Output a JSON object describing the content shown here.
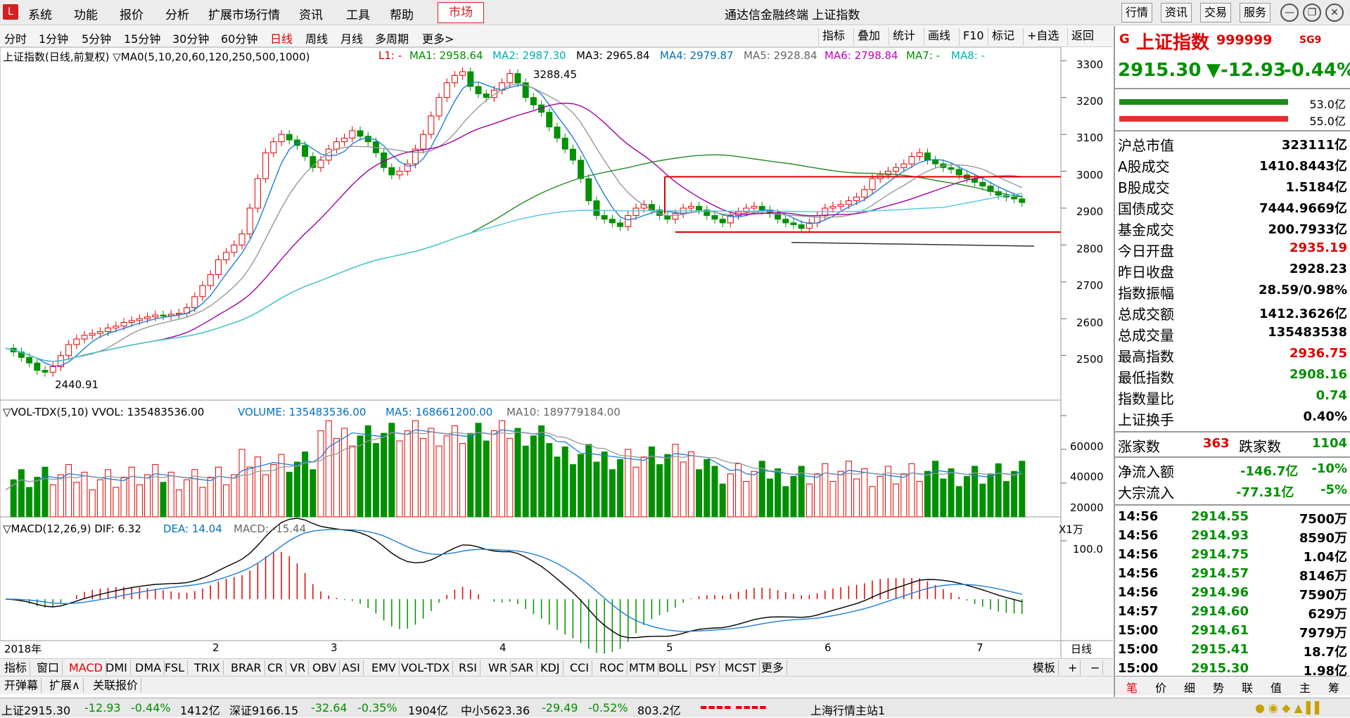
{
  "menu": {
    "logo": "L",
    "items": [
      "系统",
      "功能",
      "报价",
      "分析",
      "扩展市场行情",
      "资讯",
      "工具",
      "帮助"
    ],
    "market_tab": "市场",
    "window_title": "通达信金融终端 上证指数",
    "right_buttons": [
      "行情",
      "资讯",
      "交易",
      "服务"
    ]
  },
  "periods": [
    "分时",
    "1分钟",
    "5分钟",
    "15分钟",
    "30分钟",
    "60分钟",
    "日线",
    "周线",
    "月线",
    "多周期",
    "更多>"
  ],
  "active_period": "日线",
  "toolbar": [
    "指标",
    "叠加",
    "统计",
    "画线",
    "F10",
    "标记",
    "+自选",
    "返回"
  ],
  "price_legend": {
    "title": "上证指数(日线,前复权) ▽MA0(5,10,20,60,120,250,500,1000)",
    "l1": "L1: -",
    "ma1": "MA1: 2958.64",
    "ma2": "MA2: 2987.30",
    "ma3": "MA3: 2965.84",
    "ma4": "MA4: 2979.87",
    "ma5": "MA5: 2928.84",
    "ma6": "MA6: 2798.84",
    "ma7": "MA7: -",
    "ma8": "MA8: -"
  },
  "annotations": {
    "high": "3288.45",
    "low": "2440.91"
  },
  "price_axis": [
    "3300",
    "3200",
    "3100",
    "3000",
    "2900",
    "2800",
    "2700",
    "2600",
    "2500"
  ],
  "vol_legend": {
    "title": "▽VOL-TDX(5,10) VVOL: 135483536.00",
    "volume": "VOLUME: 135483536.00",
    "ma5": "MA5: 168661200.00",
    "ma10": "MA10: 189779184.00"
  },
  "vol_axis": [
    "60000",
    "40000",
    "20000"
  ],
  "vol_unit": "X1万",
  "macd_legend": {
    "title": "▽MACD(12,26,9) DIF: 6.32",
    "dea": "DEA: 14.04",
    "macd": "MACD: -15.44"
  },
  "macd_axis": [
    "100.0"
  ],
  "date_axis": [
    "2018年",
    "2",
    "3",
    "4",
    "5",
    "6",
    "7"
  ],
  "period_label": "日线",
  "indicator_tabs": [
    "指标",
    "窗口",
    "MACD",
    "DMI",
    "DMA",
    "FSL",
    "TRIX",
    "BRAR",
    "CR",
    "VR",
    "OBV",
    "ASI",
    "EMV",
    "VOL-TDX",
    "RSI",
    "WR",
    "SAR",
    "KDJ",
    "CCI",
    "ROC",
    "MTM",
    "BOLL",
    "PSY",
    "MCST",
    "更多"
  ],
  "active_indicator": "MACD",
  "template_btn": "模板",
  "bottom_tabs": [
    "开弹幕",
    "扩展∧",
    "关联报价"
  ],
  "panel": {
    "g": "G",
    "name": "上证指数",
    "code": "999999",
    "sg": "SG9",
    "price": "2915.30",
    "change": "▼-12.93",
    "pct": "-0.44%",
    "bar_top": "53.0亿",
    "bar_bottom": "55.0亿",
    "rows": [
      {
        "k": "沪总市值",
        "v": "323111亿",
        "c": "black"
      },
      {
        "k": "A股成交",
        "v": "1410.8443亿",
        "c": "black"
      },
      {
        "k": "B股成交",
        "v": "1.5184亿",
        "c": "black"
      },
      {
        "k": "国债成交",
        "v": "7444.9669亿",
        "c": "black"
      },
      {
        "k": "基金成交",
        "v": "200.7933亿",
        "c": "black"
      },
      {
        "k": "今日开盘",
        "v": "2935.19",
        "c": "red"
      },
      {
        "k": "昨日收盘",
        "v": "2928.23",
        "c": "black"
      },
      {
        "k": "指数振幅",
        "v": "28.59/0.98%",
        "c": "black"
      },
      {
        "k": "总成交额",
        "v": "1412.3626亿",
        "c": "black"
      },
      {
        "k": "总成交量",
        "v": "135483538",
        "c": "black"
      },
      {
        "k": "最高指数",
        "v": "2936.75",
        "c": "red"
      },
      {
        "k": "最低指数",
        "v": "2908.16",
        "c": "green"
      },
      {
        "k": "指数量比",
        "v": "0.74",
        "c": "green"
      },
      {
        "k": "上证换手",
        "v": "0.40%",
        "c": "black"
      }
    ],
    "rise_label": "涨家数",
    "rise": "363",
    "fall_label": "跌家数",
    "fall": "1104",
    "flow1_label": "净流入额",
    "flow1": "-146.7亿",
    "flow1_pct": "-10%",
    "flow2_label": "大宗流入",
    "flow2": "-77.31亿",
    "flow2_pct": "-5%",
    "ticks": [
      {
        "t": "14:56",
        "p": "2914.55",
        "q": "7500万"
      },
      {
        "t": "14:56",
        "p": "2914.93",
        "q": "8590万"
      },
      {
        "t": "14:56",
        "p": "2914.75",
        "q": "1.04亿"
      },
      {
        "t": "14:56",
        "p": "2914.57",
        "q": "8146万"
      },
      {
        "t": "14:56",
        "p": "2914.96",
        "q": "7590万"
      },
      {
        "t": "14:57",
        "p": "2914.60",
        "q": "629万"
      },
      {
        "t": "15:00",
        "p": "2914.61",
        "q": "7979万"
      },
      {
        "t": "15:00",
        "p": "2915.41",
        "q": "18.7亿"
      },
      {
        "t": "15:00",
        "p": "2915.30",
        "q": "1.98亿"
      }
    ],
    "bottom_tabs": [
      "笔",
      "价",
      "细",
      "势",
      "联",
      "值",
      "主",
      "筹"
    ]
  },
  "status": {
    "sh": "上证2915.30",
    "sh_chg": "-12.93",
    "sh_pct": "-0.44%",
    "sh_amt": "1412亿",
    "sz": "深证9166.15",
    "sz_chg": "-32.64",
    "sz_pct": "-0.35%",
    "sz_amt": "1904亿",
    "zx": "中小5623.36",
    "zx_chg": "-29.49",
    "zx_pct": "-0.52%",
    "zx_amt": "803.2亿",
    "server": "上海行情主站1"
  },
  "colors": {
    "up": "#e00000",
    "down": "#009000",
    "ma1": "#000000",
    "ma2": "#999999",
    "ma3": "#a000a0",
    "ma4": "#009000",
    "ma5": "#4cc9d8",
    "ma6": "#404040",
    "dif": "#000000",
    "dea": "#1e7fd8"
  }
}
